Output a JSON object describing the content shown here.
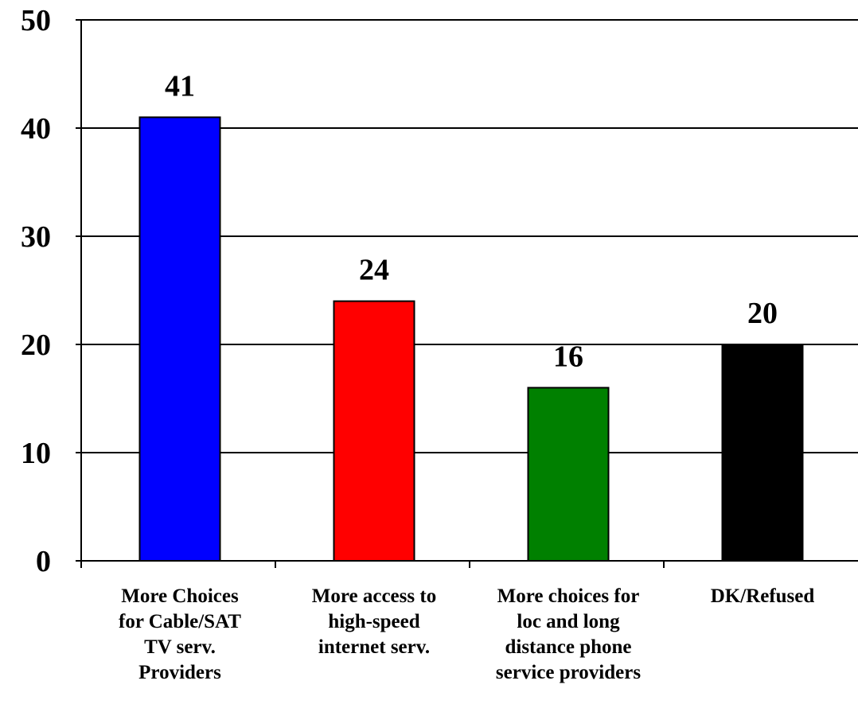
{
  "chart_data": {
    "type": "bar",
    "title": "",
    "xlabel": "",
    "ylabel": "",
    "ylim": [
      0,
      50
    ],
    "yticks": [
      0,
      10,
      20,
      30,
      40,
      50
    ],
    "grid": true,
    "legend": "none",
    "categories": [
      [
        "More Choices",
        "for Cable/SAT",
        "TV serv.",
        "Providers"
      ],
      [
        "More access to",
        "high-speed",
        "internet serv."
      ],
      [
        "More choices for",
        "loc and long",
        "distance phone",
        "service providers"
      ],
      [
        "DK/Refused"
      ]
    ],
    "values": [
      41,
      24,
      16,
      20
    ],
    "value_labels": [
      "41",
      "24",
      "16",
      "20"
    ],
    "colors": [
      "#0000ff",
      "#ff0000",
      "#008000",
      "#000000"
    ]
  }
}
